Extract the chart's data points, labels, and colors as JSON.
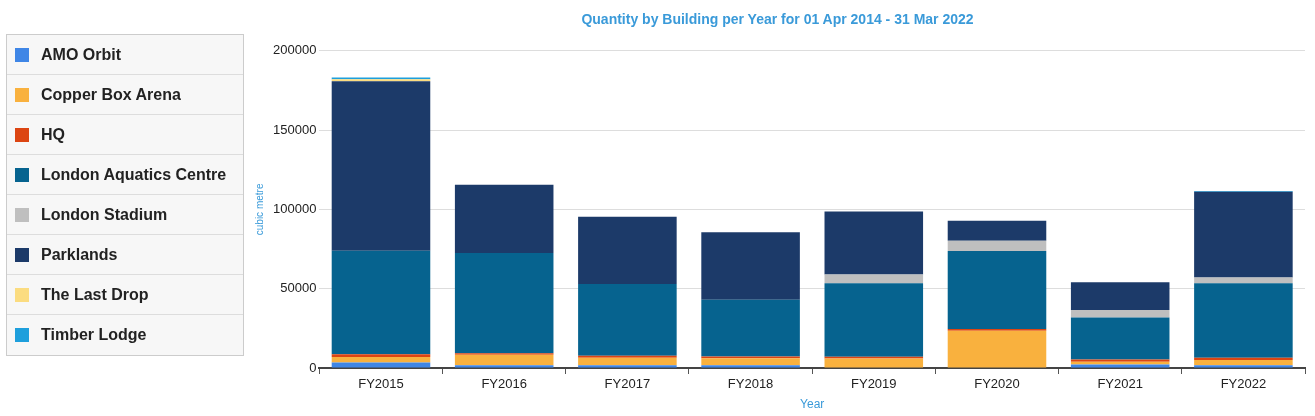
{
  "chart_data": {
    "type": "bar",
    "stacked": true,
    "title": "Quantity by Building per Year for 01 Apr 2014 - 31 Mar 2022",
    "xlabel": "Year",
    "ylabel": "cubic metre",
    "categories": [
      "FY2015",
      "FY2016",
      "FY2017",
      "FY2018",
      "FY2019",
      "FY2020",
      "FY2021",
      "FY2022"
    ],
    "series": [
      {
        "name": "AMO Orbit",
        "color": "#3f86e6",
        "values": [
          3500,
          1700,
          1700,
          1700,
          null,
          0,
          2200,
          1700
        ]
      },
      {
        "name": "Copper Box Arena",
        "color": "#f9b13e",
        "values": [
          3500,
          6600,
          4800,
          4400,
          6000,
          23500,
          1700,
          3300
        ]
      },
      {
        "name": "HQ",
        "color": "#dc4512",
        "values": [
          1700,
          1000,
          1300,
          1100,
          1100,
          1100,
          1500,
          1500
        ]
      },
      {
        "name": "London Aquatics Centre",
        "color": "#06638f",
        "values": [
          65300,
          63200,
          45200,
          35900,
          46400,
          49100,
          26400,
          46900
        ]
      },
      {
        "name": "London Stadium",
        "color": "#bfbfbf",
        "values": [
          0,
          0,
          0,
          0,
          5500,
          6500,
          4800,
          3700
        ]
      },
      {
        "name": "Parklands",
        "color": "#1c3a69",
        "values": [
          106800,
          43000,
          42400,
          42500,
          39600,
          12600,
          17400,
          54000
        ]
      },
      {
        "name": "The Last Drop",
        "color": "#fbdc80",
        "values": [
          1200,
          0,
          0,
          0,
          0,
          0,
          0,
          0
        ]
      },
      {
        "name": "Timber Lodge",
        "color": "#1e9fdc",
        "values": [
          1200,
          0,
          0,
          0,
          0,
          0,
          0,
          500
        ]
      }
    ],
    "ylim": [
      0,
      200000
    ],
    "yticks": [
      0,
      50000,
      100000,
      150000,
      200000
    ],
    "grid": "y",
    "legend": "left"
  }
}
